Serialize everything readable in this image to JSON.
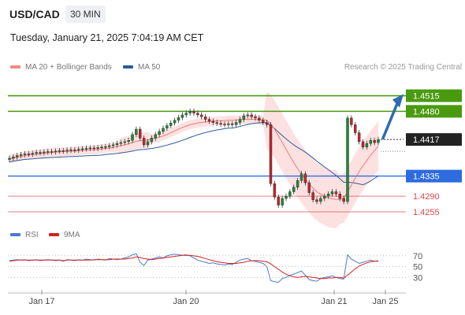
{
  "header": {
    "pair": "USD/CAD",
    "timeframe": "30 MIN",
    "datetime": "Tuesday, January 21, 2025 7:04:19 AM CET"
  },
  "legend": {
    "ma20": "MA 20 + Bollinger Bands",
    "ma50": "MA 50",
    "ma20_color": "#f08a8a",
    "ma50_color": "#2e5a9c",
    "rsi": "RSI",
    "nine_ma": "9MA",
    "rsi_color": "#4a78d0",
    "nine_ma_color": "#d42020"
  },
  "copyright": "Research © 2025 Trading Central",
  "chart_data": [
    {
      "type": "candlestick",
      "x_tick_labels": [
        "Jan 17",
        "Jan 20",
        "Jan 21",
        "Jan 25"
      ],
      "ylim": [
        1.4225,
        1.456
      ],
      "current_price": "1.4417",
      "levels": [
        {
          "label": "1.4515",
          "value": 1.4515,
          "kind": "resistance",
          "color": "#4a9a10"
        },
        {
          "label": "1.4480",
          "value": 1.448,
          "kind": "resistance",
          "color": "#4a9a10"
        },
        {
          "label": "1.4335",
          "value": 1.4335,
          "kind": "pivot",
          "color": "#2d6bdf"
        },
        {
          "label": "1.4290",
          "value": 1.429,
          "kind": "support",
          "color": "#e04848"
        },
        {
          "label": "1.4255",
          "value": 1.4255,
          "kind": "support",
          "color": "#e04848"
        }
      ],
      "forecast_arrow": {
        "from": 1.442,
        "to": 1.4515,
        "color": "#2e6bb0"
      },
      "close": [
        1.4375,
        1.4378,
        1.4381,
        1.4383,
        1.4385,
        1.4384,
        1.4386,
        1.4388,
        1.4387,
        1.4389,
        1.439,
        1.4389,
        1.4391,
        1.4392,
        1.4391,
        1.4393,
        1.4394,
        1.4393,
        1.4395,
        1.4396,
        1.4397,
        1.4398,
        1.4397,
        1.4399,
        1.44,
        1.4401,
        1.4403,
        1.4405,
        1.4408,
        1.441,
        1.4412,
        1.4415,
        1.4428,
        1.444,
        1.442,
        1.4405,
        1.4412,
        1.442,
        1.4428,
        1.4435,
        1.4442,
        1.4448,
        1.4454,
        1.446,
        1.4466,
        1.4472,
        1.4476,
        1.448,
        1.4476,
        1.4472,
        1.4468,
        1.4462,
        1.4458,
        1.4455,
        1.4453,
        1.4451,
        1.445,
        1.4452,
        1.445,
        1.4455,
        1.4462,
        1.447,
        1.4472,
        1.4468,
        1.4465,
        1.446,
        1.4455,
        1.445,
        1.4318,
        1.4288,
        1.427,
        1.4285,
        1.429,
        1.43,
        1.431,
        1.4325,
        1.434,
        1.432,
        1.4298,
        1.4282,
        1.4278,
        1.4285,
        1.429,
        1.4295,
        1.43,
        1.4295,
        1.4285,
        1.4278,
        1.4465,
        1.445,
        1.4432,
        1.4412,
        1.44,
        1.4408,
        1.4415,
        1.441,
        1.4417
      ],
      "ma20": [
        1.4373,
        1.4375,
        1.4377,
        1.4379,
        1.4381,
        1.4382,
        1.4383,
        1.4384,
        1.4385,
        1.4386,
        1.4387,
        1.4388,
        1.4389,
        1.4389,
        1.439,
        1.439,
        1.4391,
        1.4391,
        1.4392,
        1.4393,
        1.4393,
        1.4394,
        1.4394,
        1.4395,
        1.4396,
        1.4397,
        1.4398,
        1.4399,
        1.4401,
        1.4403,
        1.4405,
        1.4407,
        1.441,
        1.4413,
        1.4414,
        1.4415,
        1.4416,
        1.4418,
        1.442,
        1.4422,
        1.4425,
        1.4428,
        1.4432,
        1.4436,
        1.444,
        1.4444,
        1.4447,
        1.445,
        1.4452,
        1.4454,
        1.4455,
        1.4456,
        1.4457,
        1.4458,
        1.4459,
        1.4459,
        1.4459,
        1.446,
        1.446,
        1.4461,
        1.4461,
        1.4462,
        1.4462,
        1.4462,
        1.4462,
        1.4461,
        1.4461,
        1.446,
        1.4452,
        1.444,
        1.4425,
        1.441,
        1.4395,
        1.438,
        1.4365,
        1.4352,
        1.434,
        1.4328,
        1.4318,
        1.4308,
        1.43,
        1.4295,
        1.429,
        1.4286,
        1.4284,
        1.4283,
        1.4283,
        1.4285,
        1.43,
        1.4315,
        1.433,
        1.4345,
        1.4358,
        1.437,
        1.4382,
        1.4392,
        1.4402
      ]
    },
    {
      "type": "line",
      "name_labels": [
        "RSI",
        "9MA"
      ],
      "y_tick_labels": [
        "70",
        "50",
        "30"
      ],
      "ylim": [
        10,
        80
      ],
      "rsi": [
        61,
        62,
        63,
        62,
        63,
        61,
        62,
        63,
        61,
        62,
        63,
        62,
        61,
        62,
        60,
        63,
        62,
        61,
        63,
        62,
        64,
        63,
        62,
        64,
        63,
        62,
        65,
        64,
        63,
        64,
        66,
        68,
        72,
        74,
        58,
        52,
        62,
        64,
        66,
        68,
        66,
        70,
        72,
        73,
        72,
        71,
        72,
        70,
        66,
        62,
        60,
        58,
        56,
        57,
        55,
        54,
        53,
        55,
        54,
        58,
        62,
        64,
        65,
        61,
        60,
        58,
        56,
        50,
        24,
        22,
        21,
        28,
        30,
        34,
        36,
        39,
        42,
        34,
        26,
        24,
        23,
        28,
        30,
        31,
        33,
        30,
        28,
        27,
        72,
        64,
        60,
        56,
        58,
        60,
        62,
        60,
        61
      ],
      "nine_ma": [
        60,
        61,
        62,
        62,
        62,
        62,
        62,
        62,
        62,
        62,
        62,
        62,
        62,
        62,
        61,
        62,
        62,
        62,
        62,
        62,
        62,
        62,
        63,
        63,
        63,
        63,
        63,
        64,
        64,
        64,
        64,
        65,
        66,
        68,
        67,
        65,
        64,
        63,
        64,
        65,
        66,
        67,
        68,
        69,
        70,
        71,
        71,
        71,
        70,
        69,
        67,
        65,
        63,
        61,
        59,
        58,
        57,
        56,
        56,
        56,
        57,
        58,
        60,
        61,
        61,
        61,
        60,
        59,
        55,
        50,
        45,
        40,
        36,
        33,
        31,
        30,
        31,
        32,
        31,
        30,
        29,
        28,
        28,
        29,
        29,
        30,
        30,
        29,
        34,
        40,
        46,
        51,
        54,
        57,
        59,
        60,
        60
      ]
    }
  ]
}
